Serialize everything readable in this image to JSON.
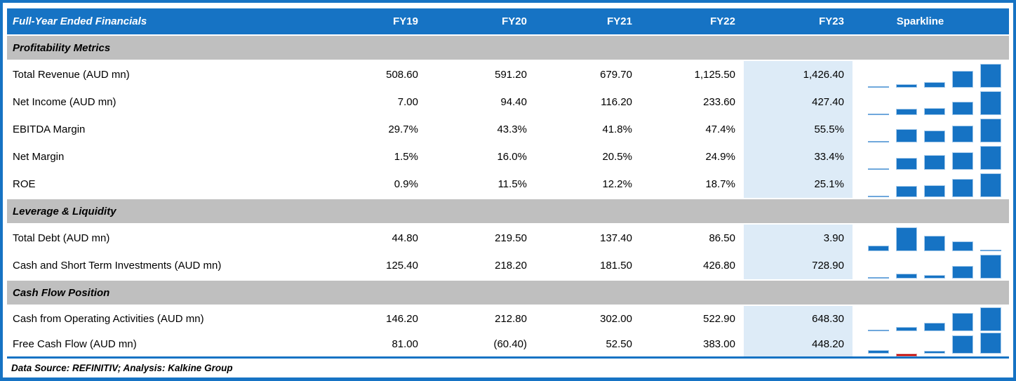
{
  "header": {
    "title": "Full-Year Ended Financials",
    "columns": [
      "FY19",
      "FY20",
      "FY21",
      "FY22",
      "FY23"
    ],
    "sparkline_label": "Sparkline"
  },
  "sections": [
    {
      "title": "Profitability Metrics",
      "rows": [
        {
          "label": "Total Revenue (AUD mn)",
          "values": [
            "508.60",
            "591.20",
            "679.70",
            "1,125.50",
            "1,426.40"
          ],
          "spark": [
            508.6,
            591.2,
            679.7,
            1125.5,
            1426.4
          ]
        },
        {
          "label": "Net Income (AUD mn)",
          "values": [
            "7.00",
            "94.40",
            "116.20",
            "233.60",
            "427.40"
          ],
          "spark": [
            7.0,
            94.4,
            116.2,
            233.6,
            427.4
          ]
        },
        {
          "label": "EBITDA Margin",
          "values": [
            "29.7%",
            "43.3%",
            "41.8%",
            "47.4%",
            "55.5%"
          ],
          "spark": [
            29.7,
            43.3,
            41.8,
            47.4,
            55.5
          ]
        },
        {
          "label": "Net Margin",
          "values": [
            "1.5%",
            "16.0%",
            "20.5%",
            "24.9%",
            "33.4%"
          ],
          "spark": [
            1.5,
            16.0,
            20.5,
            24.9,
            33.4
          ]
        },
        {
          "label": "ROE",
          "values": [
            "0.9%",
            "11.5%",
            "12.2%",
            "18.7%",
            "25.1%"
          ],
          "spark": [
            0.9,
            11.5,
            12.2,
            18.7,
            25.1
          ]
        }
      ]
    },
    {
      "title": "Leverage & Liquidity",
      "rows": [
        {
          "label": "Total Debt (AUD mn)",
          "values": [
            "44.80",
            "219.50",
            "137.40",
            "86.50",
            "3.90"
          ],
          "spark": [
            44.8,
            219.5,
            137.4,
            86.5,
            3.9
          ]
        },
        {
          "label": "Cash and Short Term Investments (AUD mn)",
          "values": [
            "125.40",
            "218.20",
            "181.50",
            "426.80",
            "728.90"
          ],
          "spark": [
            125.4,
            218.2,
            181.5,
            426.8,
            728.9
          ]
        }
      ]
    },
    {
      "title": "Cash Flow Position",
      "rows": [
        {
          "label": "Cash from Operating Activities (AUD mn)",
          "values": [
            "146.20",
            "212.80",
            "302.00",
            "522.90",
            "648.30"
          ],
          "spark": [
            146.2,
            212.8,
            302.0,
            522.9,
            648.3
          ]
        },
        {
          "label": "Free Cash Flow (AUD mn)",
          "values": [
            "81.00",
            "(60.40)",
            "52.50",
            "383.00",
            "448.20"
          ],
          "spark": [
            81.0,
            -60.4,
            52.5,
            383.0,
            448.2
          ]
        }
      ]
    }
  ],
  "footer": {
    "text": "Data Source: REFINITIV; Analysis: Kalkine Group"
  },
  "colors": {
    "accent": "#1673C4",
    "section_bg": "#BFBFBF",
    "fy23_highlight": "#DDEBF7",
    "spark_bar": "#1673C4",
    "spark_min_bar": "#6FA8DC",
    "spark_negative_bar": "#C00000"
  },
  "chart_data": {
    "type": "table",
    "title": "Full-Year Ended Financials",
    "categories": [
      "FY19",
      "FY20",
      "FY21",
      "FY22",
      "FY23"
    ],
    "series": [
      {
        "name": "Total Revenue (AUD mn)",
        "values": [
          508.6,
          591.2,
          679.7,
          1125.5,
          1426.4
        ]
      },
      {
        "name": "Net Income (AUD mn)",
        "values": [
          7.0,
          94.4,
          116.2,
          233.6,
          427.4
        ]
      },
      {
        "name": "EBITDA Margin (%)",
        "values": [
          29.7,
          43.3,
          41.8,
          47.4,
          55.5
        ]
      },
      {
        "name": "Net Margin (%)",
        "values": [
          1.5,
          16.0,
          20.5,
          24.9,
          33.4
        ]
      },
      {
        "name": "ROE (%)",
        "values": [
          0.9,
          11.5,
          12.2,
          18.7,
          25.1
        ]
      },
      {
        "name": "Total Debt (AUD mn)",
        "values": [
          44.8,
          219.5,
          137.4,
          86.5,
          3.9
        ]
      },
      {
        "name": "Cash and Short Term Investments (AUD mn)",
        "values": [
          125.4,
          218.2,
          181.5,
          426.8,
          728.9
        ]
      },
      {
        "name": "Cash from Operating Activities (AUD mn)",
        "values": [
          146.2,
          212.8,
          302.0,
          522.9,
          648.3
        ]
      },
      {
        "name": "Free Cash Flow (AUD mn)",
        "values": [
          81.0,
          -60.4,
          52.5,
          383.0,
          448.2
        ]
      }
    ]
  }
}
